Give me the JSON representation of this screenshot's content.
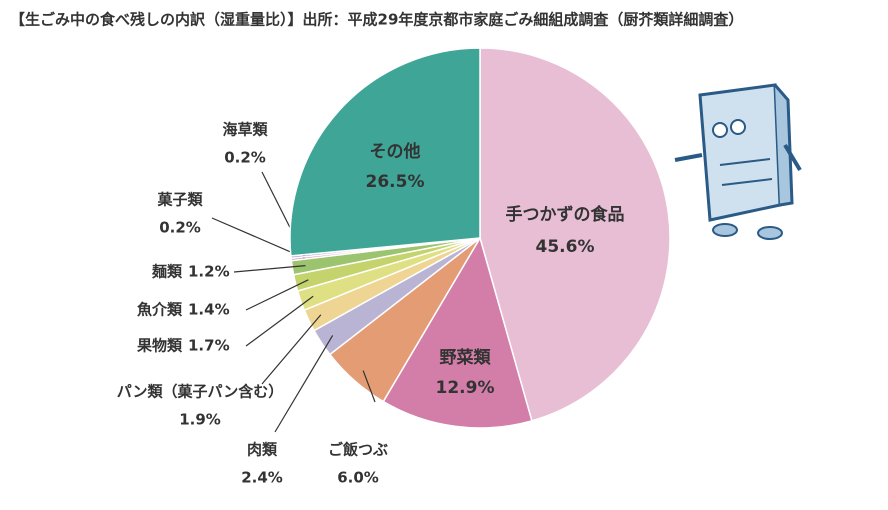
{
  "chart_data": {
    "type": "pie",
    "title": "【生ごみ中の食べ残しの内訳（湿重量比）】出所：平成29年度京都市家庭ごみ細組成調査（厨芥類詳細調査）",
    "categories": [
      "手つかずの食品",
      "野菜類",
      "ご飯つぶ",
      "肉類",
      "パン類（菓子パン含む）",
      "果物類",
      "魚介類",
      "麺類",
      "菓子類",
      "海草類",
      "その他"
    ],
    "values": [
      45.6,
      12.9,
      6.0,
      2.4,
      1.9,
      1.7,
      1.4,
      1.2,
      0.2,
      0.2,
      26.5
    ],
    "value_labels": [
      "45.6%",
      "12.9%",
      "6.0%",
      "2.4%",
      "1.9%",
      "1.7%",
      "1.4%",
      "1.2%",
      "0.2%",
      "0.2%",
      "26.5%"
    ],
    "colors": [
      "#e7bed4",
      "#d27ea8",
      "#e39c74",
      "#b9b4d4",
      "#efd593",
      "#dfe083",
      "#c4d36c",
      "#9cc46e",
      "#d990b5",
      "#aaa6cc",
      "#3ea597"
    ]
  }
}
